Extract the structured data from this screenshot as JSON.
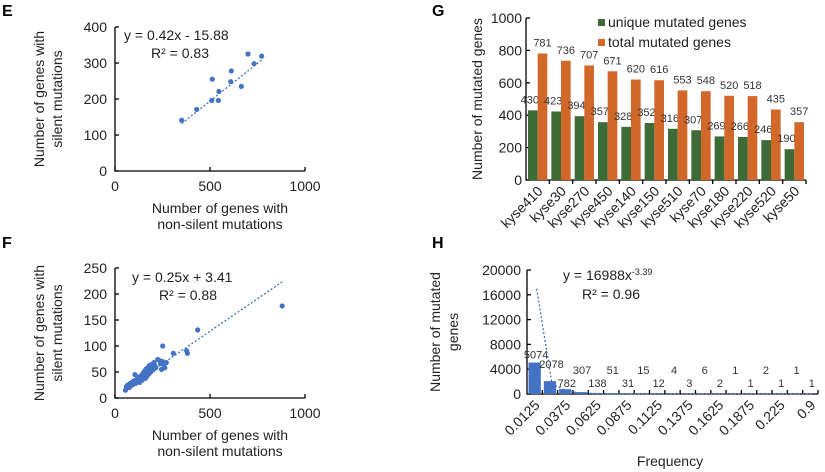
{
  "colors": {
    "points": "#4472c4",
    "unique": "#3d6b35",
    "total": "#d2672a",
    "bar": "#4472c4"
  },
  "chart_data": [
    {
      "panel": "E",
      "type": "scatter",
      "xlabel": [
        "Number of genes with",
        "non-silent mutations"
      ],
      "ylabel": [
        "Number of genes with",
        "silent mutations"
      ],
      "xlim": [
        0,
        1000
      ],
      "ylim": [
        0,
        400
      ],
      "xticks": [
        0,
        500,
        1000
      ],
      "yticks": [
        0,
        100,
        200,
        300,
        400
      ],
      "equation": "y = 0.42x - 15.88",
      "r2": "R² = 0.83",
      "trend": {
        "slope": 0.42,
        "intercept": -15.88
      },
      "points": [
        [
          351,
          141
        ],
        [
          430,
          171
        ],
        [
          509,
          196
        ],
        [
          512,
          255
        ],
        [
          544,
          196
        ],
        [
          547,
          221
        ],
        [
          609,
          248
        ],
        [
          612,
          278
        ],
        [
          665,
          235
        ],
        [
          700,
          325
        ],
        [
          732,
          298
        ],
        [
          772,
          319
        ]
      ]
    },
    {
      "panel": "F",
      "type": "scatter",
      "xlabel": [
        "Number of genes with",
        "non-silent mutations"
      ],
      "ylabel": [
        "Number of genes with",
        "silent mutations"
      ],
      "xlim": [
        0,
        1000
      ],
      "ylim": [
        0,
        250
      ],
      "xticks": [
        0,
        500,
        1000
      ],
      "yticks": [
        0,
        50,
        100,
        150,
        200,
        250
      ],
      "equation": "y = 0.25x + 3.41",
      "r2": "R² = 0.88",
      "trend": {
        "slope": 0.25,
        "intercept": 3.41
      },
      "points": [
        [
          880,
          177
        ],
        [
          435,
          131
        ],
        [
          251,
          100
        ],
        [
          307,
          86
        ],
        [
          377,
          91
        ],
        [
          381,
          86
        ],
        [
          55,
          15
        ],
        [
          60,
          22
        ],
        [
          68,
          25
        ],
        [
          75,
          20
        ],
        [
          80,
          28
        ],
        [
          85,
          24
        ],
        [
          90,
          30
        ],
        [
          95,
          26
        ],
        [
          100,
          33
        ],
        [
          105,
          45
        ],
        [
          108,
          28
        ],
        [
          112,
          35
        ],
        [
          118,
          31
        ],
        [
          120,
          40
        ],
        [
          125,
          36
        ],
        [
          130,
          30
        ],
        [
          135,
          42
        ],
        [
          138,
          38
        ],
        [
          142,
          34
        ],
        [
          145,
          46
        ],
        [
          150,
          40
        ],
        [
          152,
          50
        ],
        [
          155,
          44
        ],
        [
          160,
          38
        ],
        [
          162,
          55
        ],
        [
          165,
          48
        ],
        [
          168,
          42
        ],
        [
          172,
          58
        ],
        [
          175,
          52
        ],
        [
          178,
          46
        ],
        [
          180,
          62
        ],
        [
          185,
          56
        ],
        [
          188,
          50
        ],
        [
          190,
          64
        ],
        [
          195,
          60
        ],
        [
          200,
          54
        ],
        [
          205,
          68
        ],
        [
          210,
          62
        ],
        [
          215,
          58
        ],
        [
          225,
          74
        ],
        [
          235,
          72
        ],
        [
          240,
          66
        ],
        [
          245,
          55
        ],
        [
          250,
          70
        ],
        [
          258,
          64
        ],
        [
          262,
          58
        ],
        [
          270,
          68
        ]
      ]
    },
    {
      "panel": "G",
      "type": "bar",
      "ylabel": "Number of  mutated genes",
      "ylim": [
        0,
        1000
      ],
      "yticks": [
        0,
        200,
        400,
        600,
        800,
        1000
      ],
      "legend": "top-right",
      "categories": [
        "kyse410",
        "kyse30",
        "kyse270",
        "kyse450",
        "kyse140",
        "kyse150",
        "kyse510",
        "kyse70",
        "kyse180",
        "kyse220",
        "kyse520",
        "kyse50"
      ],
      "series": [
        {
          "name": "unique mutated genes",
          "values": [
            430,
            423,
            394,
            357,
            328,
            352,
            316,
            307,
            269,
            266,
            246,
            190
          ]
        },
        {
          "name": "total mutated genes",
          "values": [
            781,
            736,
            707,
            671,
            620,
            616,
            553,
            548,
            520,
            518,
            435,
            357
          ]
        }
      ]
    },
    {
      "panel": "H",
      "type": "bar",
      "xlabel": "Frequency",
      "ylabel": [
        "Number of mutated",
        "genes"
      ],
      "ylim": [
        0,
        20000
      ],
      "yticks": [
        0,
        4000,
        8000,
        12000,
        16000,
        20000
      ],
      "equation": "y = 16988x",
      "exponent": "-3.39",
      "r2": "R² = 0.96",
      "trend": {
        "coef": 16988,
        "power": -3.39
      },
      "tick_labels": [
        "0.0125",
        "0.0375",
        "0.0625",
        "0.0875",
        "0.1125",
        "0.1375",
        "0.1625",
        "0.1875",
        "0.225",
        "0.9"
      ],
      "values": [
        5074,
        2078,
        782,
        307,
        138,
        51,
        31,
        15,
        12,
        4,
        3,
        6,
        2,
        1,
        1,
        2,
        1,
        1,
        1
      ]
    }
  ]
}
